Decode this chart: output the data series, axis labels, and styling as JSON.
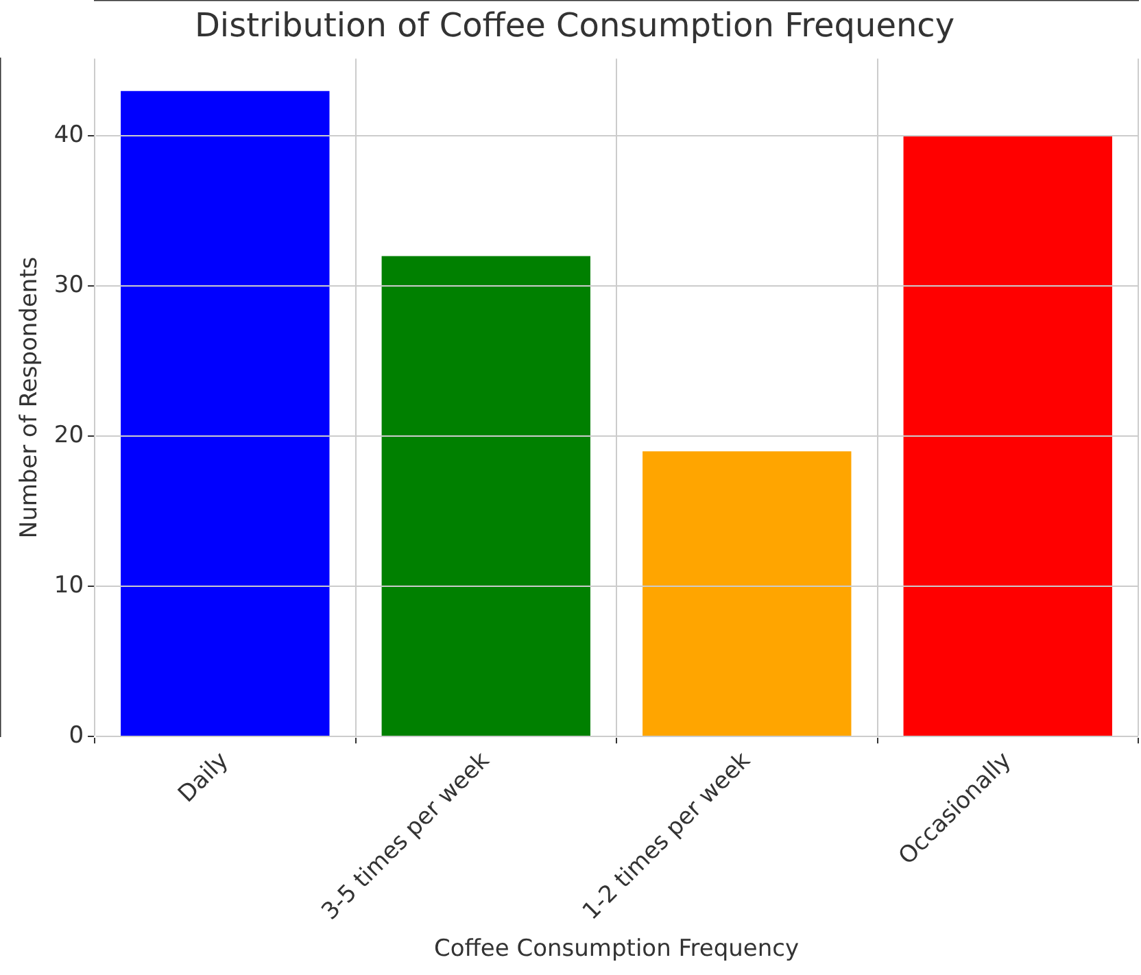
{
  "chart_data": {
    "type": "bar",
    "title": "Distribution of Coffee Consumption Frequency",
    "xlabel": "Coffee Consumption Frequency",
    "ylabel": "Number of Respondents",
    "categories": [
      "Daily",
      "3-5 times per week",
      "1-2 times per week",
      "Occasionally"
    ],
    "values": [
      43,
      32,
      19,
      40
    ],
    "colors": [
      "#0000ff",
      "#008000",
      "#ffa500",
      "#ff0000"
    ],
    "ylim": [
      0,
      45.15
    ],
    "yticks": [
      0,
      10,
      20,
      30,
      40
    ],
    "grid": true
  }
}
